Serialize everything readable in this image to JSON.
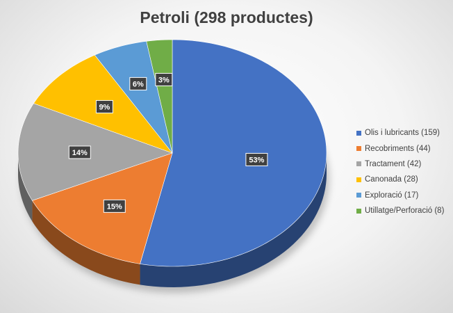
{
  "chart_data": {
    "type": "pie",
    "title": "Petroli (298 productes)",
    "categories": [
      "Olis i lubricants (159)",
      "Recobriments (44)",
      "Tractament (42)",
      "Canonada (28)",
      "Exploració (17)",
      "Utillatge/Perforació (8)"
    ],
    "values": [
      159,
      44,
      42,
      28,
      17,
      8
    ],
    "labels": [
      "53%",
      "15%",
      "14%",
      "9%",
      "6%",
      "3%"
    ],
    "colors": [
      "#4472C4",
      "#ED7D31",
      "#A5A5A5",
      "#FFC000",
      "#5B9BD5",
      "#70AD47"
    ],
    "legend": "right",
    "style": "3d"
  }
}
